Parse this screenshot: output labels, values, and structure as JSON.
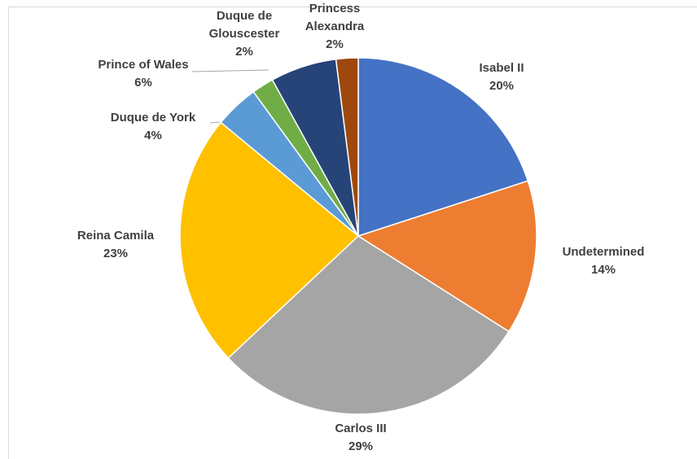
{
  "chart_data": {
    "type": "pie",
    "categories": [
      "Isabel II",
      "Undetermined",
      "Carlos III",
      "Reina Camila",
      "Duque de York",
      "Duque de Glouscester",
      "Prince of Wales",
      "Princess Alexandra"
    ],
    "values": [
      20,
      14,
      29,
      23,
      4,
      2,
      6,
      2
    ],
    "value_labels": [
      "20%",
      "14%",
      "29%",
      "23%",
      "4%",
      "2%",
      "6%",
      "2%"
    ],
    "colors": [
      "#4472c4",
      "#ed7d31",
      "#a5a5a5",
      "#ffc000",
      "#5b9bd5",
      "#70ad47",
      "#264478",
      "#9e480e"
    ]
  }
}
